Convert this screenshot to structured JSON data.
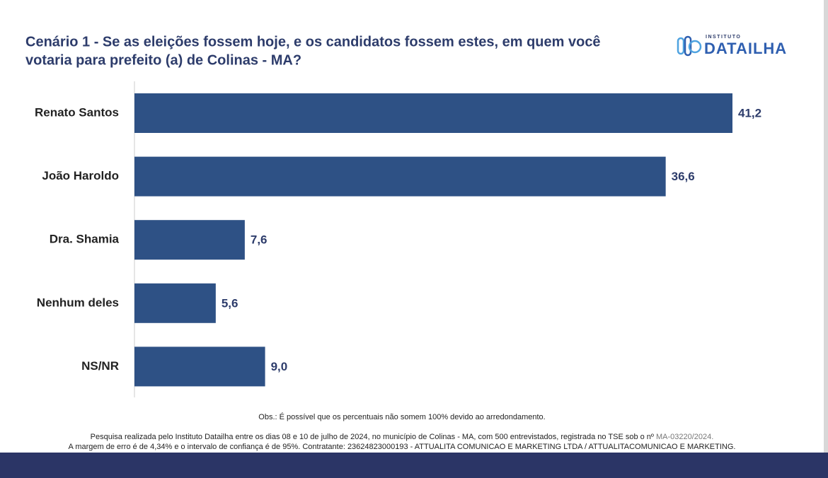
{
  "chart_data": {
    "type": "hbar",
    "title_lines": [
      "Cenário 1 - Se as eleições fossem hoje, e os candidatos fossem estes, em quem você",
      "votaria para prefeito (a) de Colinas - MA?"
    ],
    "brand": {
      "small": "INSTITUTO",
      "name": "DATAILHA"
    },
    "categories": [
      "Renato Santos",
      "João Haroldo",
      "Dra. Shamia",
      "Nenhum deles",
      "NS/NR"
    ],
    "values": [
      41.2,
      36.6,
      7.6,
      5.6,
      9.0
    ],
    "value_labels": [
      "41,2",
      "36,6",
      "7,6",
      "5,6",
      "9,0"
    ],
    "color": "#2e5185",
    "note": "Obs.: É possível que os percentuais não somem 100% devido ao arredondamento.",
    "source_line1": "Pesquisa realizada pelo Instituto Datailha entre os dias 08 e 10 de julho de 2024, no município de Colinas - MA, com 500 entrevistados, registrada no TSE sob o nº",
    "registration": "MA-03220/2024.",
    "source_line2": "A margem de erro é de 4,34% e o intervalo de confiança é de 95%.  Contratante: 23624823000193 - ATTUALITA COMUNICAO E MARKETING LTDA / ATTUALITACOMUNICAO E MARKETING."
  }
}
